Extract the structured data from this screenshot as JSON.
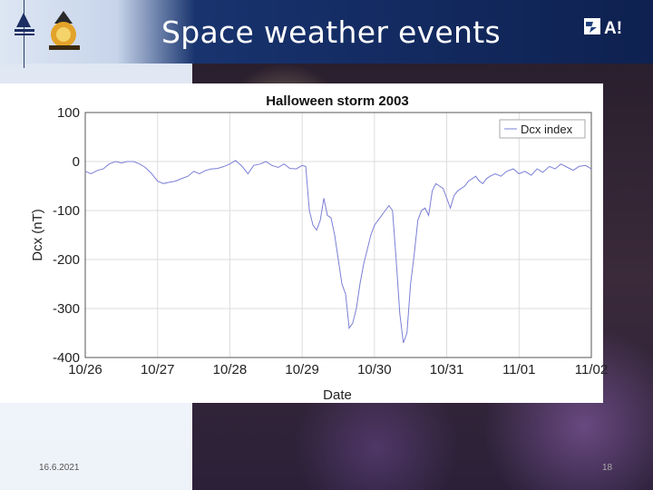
{
  "slide": {
    "title": "Space weather events",
    "footer_date": "16.6.2021",
    "page_number": "18",
    "logo_right_text": "A!"
  },
  "chart_data": {
    "type": "line",
    "title": "Halloween storm 2003",
    "xlabel": "Date",
    "ylabel": "Dcx (nT)",
    "ylim": [
      -400,
      100
    ],
    "xlim": [
      "10/26",
      "11/02"
    ],
    "x_ticks": [
      "10/26",
      "10/27",
      "10/28",
      "10/29",
      "10/30",
      "10/31",
      "11/01",
      "11/02"
    ],
    "y_ticks": [
      100,
      0,
      -100,
      -200,
      -300,
      -400
    ],
    "grid": true,
    "legend": "top-right",
    "colors": {
      "series": "#7b7fd6"
    },
    "series": [
      {
        "name": "Dcx index",
        "x_days": [
          0,
          0.08,
          0.17,
          0.25,
          0.33,
          0.42,
          0.5,
          0.58,
          0.67,
          0.75,
          0.83,
          0.92,
          1.0,
          1.08,
          1.17,
          1.25,
          1.33,
          1.42,
          1.5,
          1.58,
          1.67,
          1.75,
          1.83,
          1.92,
          2.0,
          2.08,
          2.17,
          2.25,
          2.33,
          2.42,
          2.5,
          2.58,
          2.67,
          2.75,
          2.83,
          2.92,
          3.0,
          3.05,
          3.1,
          3.15,
          3.2,
          3.25,
          3.3,
          3.35,
          3.4,
          3.45,
          3.5,
          3.55,
          3.6,
          3.65,
          3.7,
          3.75,
          3.8,
          3.85,
          3.9,
          3.95,
          4.0,
          4.05,
          4.1,
          4.15,
          4.2,
          4.25,
          4.3,
          4.35,
          4.4,
          4.45,
          4.5,
          4.55,
          4.6,
          4.65,
          4.7,
          4.75,
          4.8,
          4.85,
          4.9,
          4.95,
          5.0,
          5.05,
          5.1,
          5.15,
          5.2,
          5.25,
          5.3,
          5.35,
          5.4,
          5.45,
          5.5,
          5.55,
          5.6,
          5.67,
          5.75,
          5.83,
          5.92,
          6.0,
          6.08,
          6.17,
          6.25,
          6.33,
          6.42,
          6.5,
          6.58,
          6.67,
          6.75,
          6.83,
          6.92,
          7.0
        ],
        "values": [
          -20,
          -25,
          -18,
          -15,
          -5,
          0,
          -3,
          0,
          0,
          -5,
          -12,
          -25,
          -40,
          -45,
          -42,
          -40,
          -35,
          -30,
          -20,
          -25,
          -18,
          -15,
          -14,
          -10,
          -5,
          2,
          -10,
          -25,
          -8,
          -5,
          0,
          -8,
          -12,
          -5,
          -14,
          -15,
          -8,
          -10,
          -100,
          -130,
          -140,
          -120,
          -75,
          -110,
          -115,
          -150,
          -200,
          -250,
          -270,
          -340,
          -330,
          -300,
          -250,
          -210,
          -180,
          -150,
          -130,
          -120,
          -110,
          -100,
          -90,
          -100,
          -200,
          -310,
          -370,
          -350,
          -250,
          -190,
          -120,
          -100,
          -95,
          -110,
          -60,
          -45,
          -50,
          -55,
          -75,
          -95,
          -70,
          -60,
          -55,
          -50,
          -40,
          -35,
          -30,
          -40,
          -45,
          -35,
          -30,
          -25,
          -30,
          -20,
          -15,
          -25,
          -20,
          -28,
          -15,
          -22,
          -10,
          -15,
          -5,
          -12,
          -18,
          -10,
          -8,
          -15
        ]
      }
    ]
  }
}
